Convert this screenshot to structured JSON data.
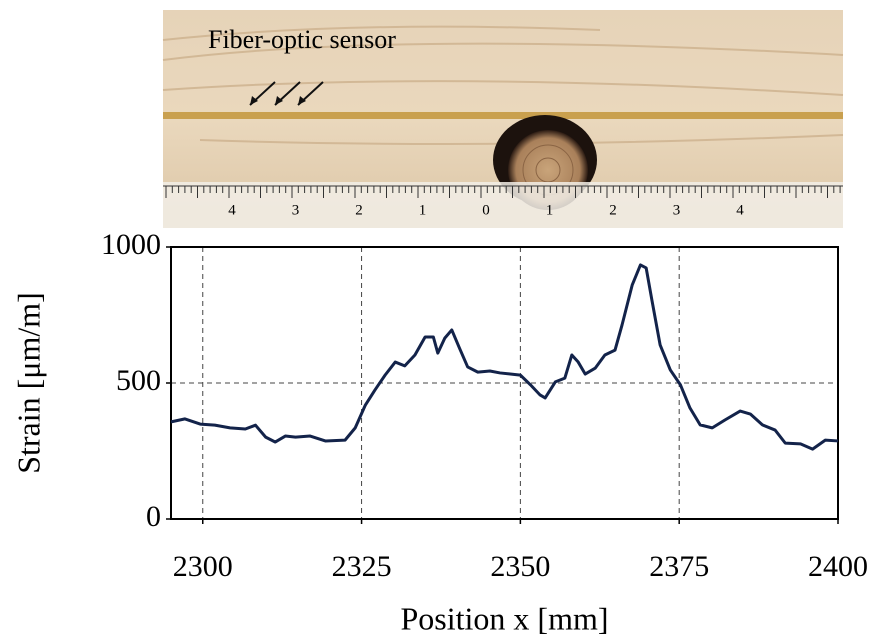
{
  "photo": {
    "label": "Fiber-optic sensor",
    "ruler_labels": [
      "4",
      "3",
      "2",
      "1",
      "0",
      "1",
      "2",
      "3",
      "4"
    ]
  },
  "chart_data": {
    "type": "line",
    "xlabel": "Position x [mm]",
    "ylabel": "Strain [μm/m]",
    "xlim": [
      2295,
      2400
    ],
    "ylim": [
      0,
      1000
    ],
    "xticks": [
      2300,
      2325,
      2350,
      2375,
      2400
    ],
    "yticks": [
      0,
      500,
      1000
    ],
    "grid": true,
    "series": [
      {
        "color": "#13234a",
        "x": [
          2295.0,
          2297.2,
          2299.6,
          2301.9,
          2304.3,
          2306.7,
          2308.3,
          2309.9,
          2311.4,
          2313.0,
          2314.6,
          2316.9,
          2319.3,
          2322.4,
          2324.0,
          2325.6,
          2327.1,
          2328.7,
          2330.3,
          2331.8,
          2333.4,
          2335.0,
          2336.3,
          2337.0,
          2338.1,
          2339.2,
          2340.4,
          2341.7,
          2343.3,
          2345.2,
          2346.8,
          2348.4,
          2350.0,
          2351.6,
          2353.1,
          2353.9,
          2355.5,
          2357.0,
          2358.1,
          2359.1,
          2360.2,
          2361.8,
          2363.3,
          2364.9,
          2366.0,
          2367.6,
          2368.9,
          2369.8,
          2370.7,
          2372.0,
          2373.6,
          2375.2,
          2376.7,
          2378.3,
          2380.2,
          2382.2,
          2384.6,
          2386.2,
          2388.1,
          2390.1,
          2391.7,
          2394.1,
          2396.0,
          2398.0,
          2400.0
        ],
        "values": [
          357,
          368,
          349,
          345,
          335,
          331,
          345,
          301,
          283,
          305,
          301,
          305,
          287,
          290,
          335,
          419,
          474,
          529,
          577,
          563,
          603,
          669,
          669,
          610,
          665,
          695,
          629,
          559,
          540,
          544,
          537,
          533,
          529,
          493,
          456,
          445,
          504,
          518,
          603,
          577,
          533,
          555,
          603,
          621,
          713,
          860,
          934,
          923,
          805,
          640,
          548,
          493,
          408,
          346,
          335,
          364,
          397,
          386,
          346,
          327,
          279,
          276,
          257,
          290,
          287
        ]
      }
    ]
  }
}
